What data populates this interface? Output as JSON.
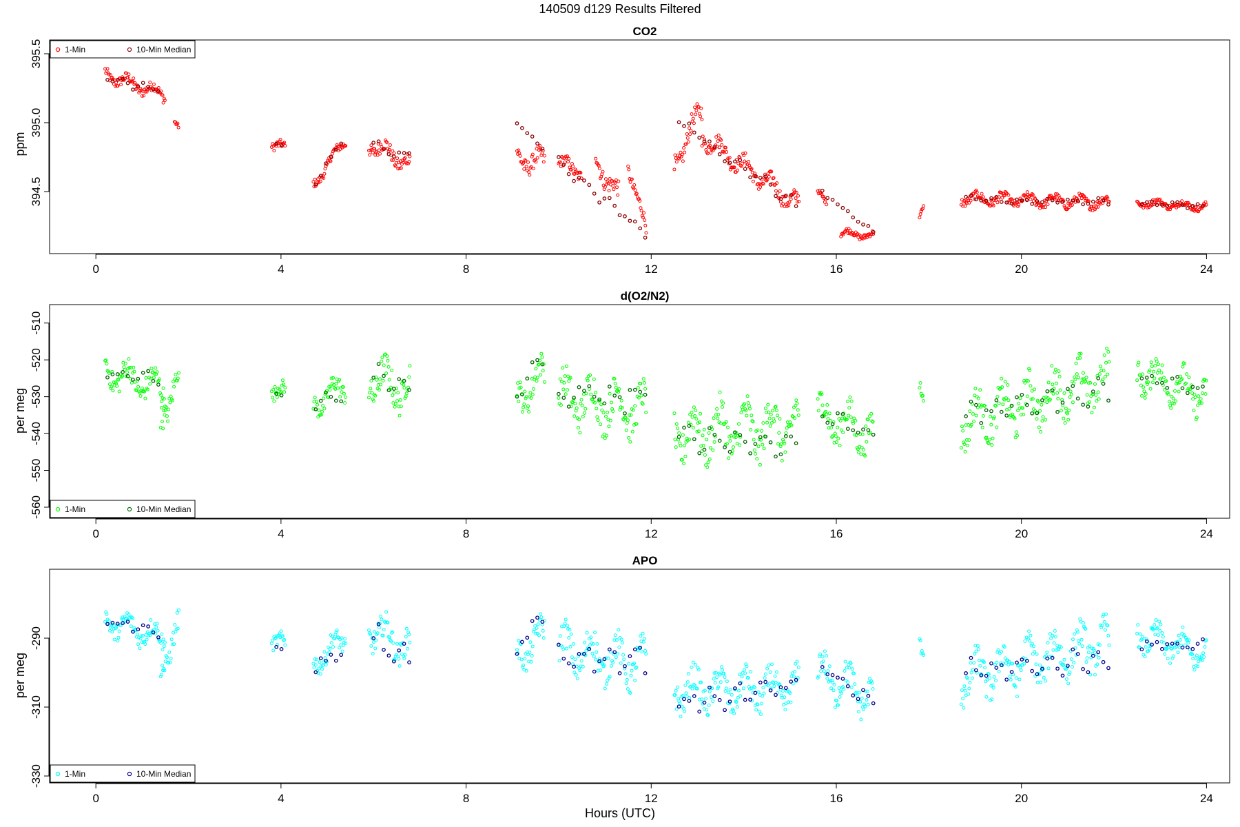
{
  "figure": {
    "suptitle": "140509   d129   Results Filtered",
    "xlabel": "Hours (UTC)"
  },
  "chart_data": [
    {
      "type": "scatter",
      "title": "CO2",
      "xlabel": "",
      "ylabel": "ppm",
      "xlim": [
        -1,
        24.5
      ],
      "ylim": [
        394.05,
        395.6
      ],
      "xticks": [
        0,
        4,
        8,
        12,
        16,
        20,
        24
      ],
      "yticks": [
        394.5,
        395.0,
        395.5
      ],
      "ytick_labels": [
        "394.5",
        "395.0",
        "395.5"
      ],
      "legend_position": "top-left",
      "grid": false,
      "series": [
        {
          "name": "1-Min",
          "color": "#ff0000",
          "segments": [
            {
              "x0": 0.2,
              "x1": 1.5,
              "y0": 395.35,
              "y1": 395.2,
              "amp": 0.07
            },
            {
              "x0": 1.7,
              "x1": 1.8,
              "y0": 395.0,
              "y1": 394.95,
              "amp": 0.03
            },
            {
              "x0": 3.8,
              "x1": 4.1,
              "y0": 394.85,
              "y1": 394.8,
              "amp": 0.06
            },
            {
              "x0": 4.7,
              "x1": 5.4,
              "y0": 394.55,
              "y1": 394.88,
              "amp": 0.06
            },
            {
              "x0": 5.9,
              "x1": 6.8,
              "y0": 394.85,
              "y1": 394.7,
              "amp": 0.1
            },
            {
              "x0": 9.1,
              "x1": 9.7,
              "y0": 394.75,
              "y1": 394.7,
              "amp": 0.12
            },
            {
              "x0": 10.0,
              "x1": 10.5,
              "y0": 394.7,
              "y1": 394.65,
              "amp": 0.08
            },
            {
              "x0": 10.8,
              "x1": 11.3,
              "y0": 394.75,
              "y1": 394.45,
              "amp": 0.12
            },
            {
              "x0": 11.5,
              "x1": 11.9,
              "y0": 394.7,
              "y1": 394.2,
              "amp": 0.08
            },
            {
              "x0": 12.5,
              "x1": 13.1,
              "y0": 394.7,
              "y1": 395.1,
              "amp": 0.12
            },
            {
              "x0": 13.1,
              "x1": 15.2,
              "y0": 394.9,
              "y1": 394.4,
              "amp": 0.1
            },
            {
              "x0": 15.6,
              "x1": 15.8,
              "y0": 394.5,
              "y1": 394.4,
              "amp": 0.03
            },
            {
              "x0": 16.1,
              "x1": 16.8,
              "y0": 394.2,
              "y1": 394.18,
              "amp": 0.04
            },
            {
              "x0": 17.8,
              "x1": 17.9,
              "y0": 394.32,
              "y1": 394.38,
              "amp": 0.03
            },
            {
              "x0": 18.7,
              "x1": 21.9,
              "y0": 394.45,
              "y1": 394.42,
              "amp": 0.06
            },
            {
              "x0": 22.5,
              "x1": 24.0,
              "y0": 394.42,
              "y1": 394.39,
              "amp": 0.04
            }
          ]
        },
        {
          "name": "10-Min Median",
          "color": "#8b0000",
          "segments": [
            {
              "x0": 0.25,
              "x1": 1.45,
              "y0": 395.33,
              "y1": 395.22,
              "amp": 0.04
            },
            {
              "x0": 3.9,
              "x1": 4.05,
              "y0": 394.84,
              "y1": 394.84,
              "amp": 0.02
            },
            {
              "x0": 4.75,
              "x1": 5.4,
              "y0": 394.56,
              "y1": 394.93,
              "amp": 0.03
            },
            {
              "x0": 6.0,
              "x1": 6.8,
              "y0": 394.84,
              "y1": 394.75,
              "amp": 0.04
            },
            {
              "x0": 9.1,
              "x1": 9.7,
              "y0": 395.0,
              "y1": 394.8,
              "amp": 0.04
            },
            {
              "x0": 10.0,
              "x1": 11.9,
              "y0": 394.7,
              "y1": 394.2,
              "amp": 0.05
            },
            {
              "x0": 12.6,
              "x1": 15.2,
              "y0": 395.0,
              "y1": 394.4,
              "amp": 0.06
            },
            {
              "x0": 15.7,
              "x1": 16.8,
              "y0": 394.5,
              "y1": 394.2,
              "amp": 0.02
            },
            {
              "x0": 18.8,
              "x1": 21.9,
              "y0": 394.44,
              "y1": 394.42,
              "amp": 0.03
            },
            {
              "x0": 22.6,
              "x1": 24.0,
              "y0": 394.42,
              "y1": 394.39,
              "amp": 0.02
            }
          ]
        }
      ]
    },
    {
      "type": "scatter",
      "title": "d(O2/N2)",
      "xlabel": "",
      "ylabel": "per meg",
      "xlim": [
        -1,
        24.5
      ],
      "ylim": [
        -563,
        -505
      ],
      "xticks": [
        0,
        4,
        8,
        12,
        16,
        20,
        24
      ],
      "yticks": [
        -510,
        -520,
        -530,
        -540,
        -550,
        -560
      ],
      "ytick_labels": [
        "-510",
        "-520",
        "-530",
        "-540",
        "-550",
        "-560"
      ],
      "legend_position": "bottom-left",
      "grid": false,
      "series": [
        {
          "name": "1-Min",
          "color": "#00ff00",
          "segments": [
            {
              "x0": 0.2,
              "x1": 1.5,
              "y0": -523,
              "y1": -528,
              "amp": 6
            },
            {
              "x0": 1.4,
              "x1": 1.8,
              "y0": -535,
              "y1": -525,
              "amp": 6
            },
            {
              "x0": 3.8,
              "x1": 4.1,
              "y0": -528,
              "y1": -530,
              "amp": 4
            },
            {
              "x0": 4.7,
              "x1": 5.4,
              "y0": -532,
              "y1": -527,
              "amp": 5
            },
            {
              "x0": 5.9,
              "x1": 6.8,
              "y0": -525,
              "y1": -528,
              "amp": 8
            },
            {
              "x0": 9.1,
              "x1": 9.7,
              "y0": -530,
              "y1": -524,
              "amp": 7
            },
            {
              "x0": 10.0,
              "x1": 11.9,
              "y0": -530,
              "y1": -534,
              "amp": 9
            },
            {
              "x0": 12.5,
              "x1": 15.2,
              "y0": -540,
              "y1": -538,
              "amp": 10
            },
            {
              "x0": 15.6,
              "x1": 16.8,
              "y0": -535,
              "y1": -540,
              "amp": 8
            },
            {
              "x0": 17.8,
              "x1": 17.9,
              "y0": -527,
              "y1": -532,
              "amp": 4
            },
            {
              "x0": 18.7,
              "x1": 21.9,
              "y0": -537,
              "y1": -525,
              "amp": 9
            },
            {
              "x0": 22.5,
              "x1": 24.0,
              "y0": -523,
              "y1": -530,
              "amp": 7
            }
          ]
        },
        {
          "name": "10-Min Median",
          "color": "#006400",
          "segments": [
            {
              "x0": 0.25,
              "x1": 1.45,
              "y0": -524,
              "y1": -525,
              "amp": 2
            },
            {
              "x0": 3.9,
              "x1": 4.05,
              "y0": -530,
              "y1": -530,
              "amp": 1
            },
            {
              "x0": 4.75,
              "x1": 5.4,
              "y0": -532,
              "y1": -528,
              "amp": 3
            },
            {
              "x0": 6.0,
              "x1": 6.8,
              "y0": -525,
              "y1": -529,
              "amp": 5
            },
            {
              "x0": 9.1,
              "x1": 9.7,
              "y0": -529,
              "y1": -519,
              "amp": 3
            },
            {
              "x0": 10.0,
              "x1": 11.9,
              "y0": -530,
              "y1": -530,
              "amp": 5
            },
            {
              "x0": 12.6,
              "x1": 15.2,
              "y0": -541,
              "y1": -543,
              "amp": 4
            },
            {
              "x0": 15.7,
              "x1": 16.8,
              "y0": -535,
              "y1": -540,
              "amp": 3
            },
            {
              "x0": 18.8,
              "x1": 21.9,
              "y0": -535,
              "y1": -528,
              "amp": 4
            },
            {
              "x0": 22.6,
              "x1": 24.0,
              "y0": -525,
              "y1": -528,
              "amp": 2
            }
          ]
        }
      ]
    },
    {
      "type": "scatter",
      "title": "APO",
      "xlabel": "Hours (UTC)",
      "ylabel": "per meg",
      "xlim": [
        -1,
        24.5
      ],
      "ylim": [
        -332,
        -270
      ],
      "xticks": [
        0,
        4,
        8,
        12,
        16,
        20,
        24
      ],
      "yticks": [
        -290,
        -310,
        -330
      ],
      "ytick_labels": [
        "-290",
        "-310",
        "-330"
      ],
      "legend_position": "bottom-left",
      "grid": false,
      "series": [
        {
          "name": "1-Min",
          "color": "#00ffff",
          "segments": [
            {
              "x0": 0.2,
              "x1": 1.5,
              "y0": -285,
              "y1": -290,
              "amp": 5
            },
            {
              "x0": 1.4,
              "x1": 1.8,
              "y0": -298,
              "y1": -287,
              "amp": 6
            },
            {
              "x0": 3.8,
              "x1": 4.1,
              "y0": -290,
              "y1": -293,
              "amp": 4
            },
            {
              "x0": 4.7,
              "x1": 5.4,
              "y0": -297,
              "y1": -290,
              "amp": 5
            },
            {
              "x0": 5.9,
              "x1": 6.8,
              "y0": -287,
              "y1": -293,
              "amp": 7
            },
            {
              "x0": 9.1,
              "x1": 9.7,
              "y0": -295,
              "y1": -289,
              "amp": 7
            },
            {
              "x0": 10.0,
              "x1": 11.9,
              "y0": -293,
              "y1": -298,
              "amp": 9
            },
            {
              "x0": 12.5,
              "x1": 15.2,
              "y0": -305,
              "y1": -305,
              "amp": 8
            },
            {
              "x0": 15.6,
              "x1": 16.8,
              "y0": -300,
              "y1": -307,
              "amp": 8
            },
            {
              "x0": 17.8,
              "x1": 17.9,
              "y0": -292,
              "y1": -297,
              "amp": 4
            },
            {
              "x0": 18.7,
              "x1": 21.9,
              "y0": -302,
              "y1": -291,
              "amp": 9
            },
            {
              "x0": 22.5,
              "x1": 24.0,
              "y0": -289,
              "y1": -295,
              "amp": 6
            }
          ]
        },
        {
          "name": "10-Min Median",
          "color": "#00008b",
          "segments": [
            {
              "x0": 0.25,
              "x1": 1.45,
              "y0": -285,
              "y1": -288,
              "amp": 2
            },
            {
              "x0": 3.9,
              "x1": 4.05,
              "y0": -293,
              "y1": -293,
              "amp": 1
            },
            {
              "x0": 4.75,
              "x1": 5.4,
              "y0": -298,
              "y1": -294,
              "amp": 3
            },
            {
              "x0": 6.0,
              "x1": 6.8,
              "y0": -290,
              "y1": -296,
              "amp": 5
            },
            {
              "x0": 9.1,
              "x1": 9.7,
              "y0": -292,
              "y1": -283,
              "amp": 3
            },
            {
              "x0": 10.0,
              "x1": 11.9,
              "y0": -295,
              "y1": -296,
              "amp": 5
            },
            {
              "x0": 12.6,
              "x1": 15.2,
              "y0": -309,
              "y1": -304,
              "amp": 4
            },
            {
              "x0": 15.7,
              "x1": 16.8,
              "y0": -299,
              "y1": -309,
              "amp": 3
            },
            {
              "x0": 18.8,
              "x1": 21.9,
              "y0": -300,
              "y1": -296,
              "amp": 4
            },
            {
              "x0": 22.6,
              "x1": 24.0,
              "y0": -292,
              "y1": -292,
              "amp": 2
            }
          ]
        }
      ]
    }
  ]
}
